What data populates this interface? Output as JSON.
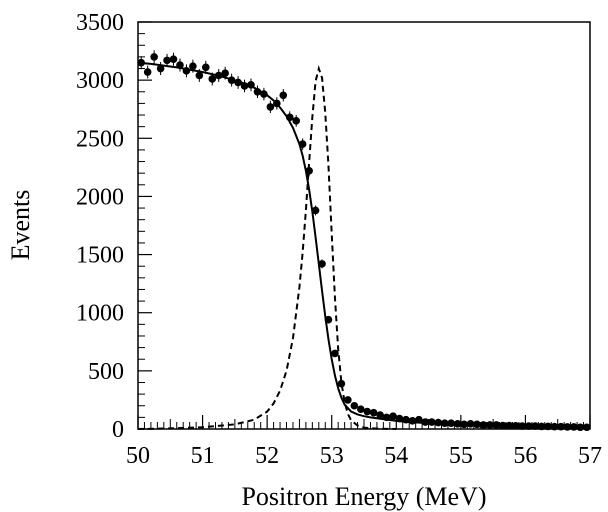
{
  "chart_data": {
    "type": "scatter",
    "xlabel": "Positron Energy (MeV)",
    "ylabel": "Events",
    "xlim": [
      50,
      57
    ],
    "ylim": [
      0,
      3500
    ],
    "x_ticks": [
      50,
      51,
      52,
      53,
      54,
      55,
      56,
      57
    ],
    "y_ticks": [
      0,
      500,
      1000,
      1500,
      2000,
      2500,
      3000,
      3500
    ],
    "grid": false,
    "legend": "none",
    "series": [
      {
        "kind": "points-with-error-bars",
        "style": "filled-circle",
        "color": "#000000",
        "x": [
          50.05,
          50.15,
          50.25,
          50.35,
          50.45,
          50.55,
          50.65,
          50.75,
          50.85,
          50.95,
          51.05,
          51.15,
          51.25,
          51.35,
          51.45,
          51.55,
          51.65,
          51.75,
          51.85,
          51.95,
          52.05,
          52.15,
          52.25,
          52.35,
          52.45,
          52.55,
          52.65,
          52.75,
          52.85,
          52.95,
          53.05,
          53.15,
          53.25,
          53.35,
          53.45,
          53.55,
          53.65,
          53.75,
          53.85,
          53.95,
          54.05,
          54.15,
          54.25,
          54.35,
          54.45,
          54.55,
          54.65,
          54.75,
          54.85,
          54.95,
          55.05,
          55.15,
          55.25,
          55.35,
          55.45,
          55.55,
          55.65,
          55.75,
          55.85,
          55.95,
          56.05,
          56.15,
          56.25,
          56.35,
          56.45,
          56.55,
          56.65,
          56.75,
          56.85,
          56.95
        ],
        "y": [
          3150,
          3070,
          3200,
          3100,
          3170,
          3180,
          3130,
          3080,
          3120,
          3040,
          3110,
          3010,
          3040,
          3060,
          3000,
          2980,
          2950,
          2960,
          2900,
          2880,
          2770,
          2800,
          2870,
          2680,
          2650,
          2450,
          2220,
          1880,
          1420,
          940,
          650,
          390,
          250,
          200,
          170,
          150,
          140,
          120,
          100,
          110,
          90,
          80,
          70,
          80,
          60,
          60,
          55,
          50,
          50,
          45,
          40,
          45,
          40,
          35,
          35,
          35,
          30,
          30,
          28,
          25,
          25,
          25,
          22,
          22,
          20,
          20,
          18,
          18,
          15,
          15
        ],
        "errors": [
          56,
          55,
          57,
          56,
          56,
          56,
          56,
          56,
          56,
          55,
          56,
          55,
          55,
          55,
          55,
          55,
          54,
          54,
          54,
          54,
          53,
          53,
          54,
          52,
          51,
          49,
          47,
          43,
          38,
          31,
          25,
          20,
          16,
          14,
          13,
          12,
          12,
          11,
          10,
          10,
          9,
          9,
          8,
          9,
          8,
          8,
          7,
          7,
          7,
          7,
          6,
          7,
          6,
          6,
          6,
          6,
          5,
          5,
          5,
          5,
          5,
          5,
          5,
          5,
          4,
          4,
          4,
          4,
          4,
          4
        ]
      },
      {
        "kind": "fit-curve",
        "style": "solid",
        "color": "#000000",
        "x": [
          50.0,
          50.2,
          50.4,
          50.6,
          50.8,
          51.0,
          51.2,
          51.4,
          51.6,
          51.8,
          52.0,
          52.1,
          52.2,
          52.3,
          52.4,
          52.5,
          52.55,
          52.6,
          52.65,
          52.7,
          52.75,
          52.8,
          52.85,
          52.9,
          52.95,
          53.0,
          53.05,
          53.1,
          53.15,
          53.2,
          53.3,
          53.4,
          53.5,
          53.6,
          53.8,
          54.0,
          54.2,
          54.5,
          55.0,
          55.5,
          56.0,
          56.5,
          57.0
        ],
        "y": [
          3150,
          3140,
          3125,
          3110,
          3090,
          3070,
          3045,
          3015,
          2980,
          2935,
          2870,
          2825,
          2765,
          2690,
          2590,
          2450,
          2350,
          2220,
          2060,
          1870,
          1650,
          1420,
          1190,
          970,
          770,
          600,
          460,
          350,
          270,
          210,
          150,
          125,
          110,
          100,
          85,
          70,
          60,
          50,
          40,
          30,
          25,
          20,
          15
        ]
      },
      {
        "kind": "expected-signal",
        "style": "dashed",
        "color": "#000000",
        "x": [
          50.0,
          50.5,
          51.0,
          51.5,
          51.8,
          52.0,
          52.1,
          52.2,
          52.3,
          52.4,
          52.5,
          52.55,
          52.6,
          52.65,
          52.7,
          52.75,
          52.8,
          52.85,
          52.9,
          52.95,
          53.0,
          53.05,
          53.1,
          53.15,
          53.2,
          53.25,
          53.3,
          53.4,
          53.5,
          53.7,
          54.0
        ],
        "y": [
          0,
          5,
          15,
          40,
          80,
          150,
          220,
          330,
          500,
          780,
          1220,
          1520,
          1880,
          2290,
          2680,
          2990,
          3100,
          3020,
          2720,
          2260,
          1680,
          1130,
          690,
          400,
          230,
          130,
          75,
          30,
          12,
          3,
          0
        ]
      }
    ]
  }
}
